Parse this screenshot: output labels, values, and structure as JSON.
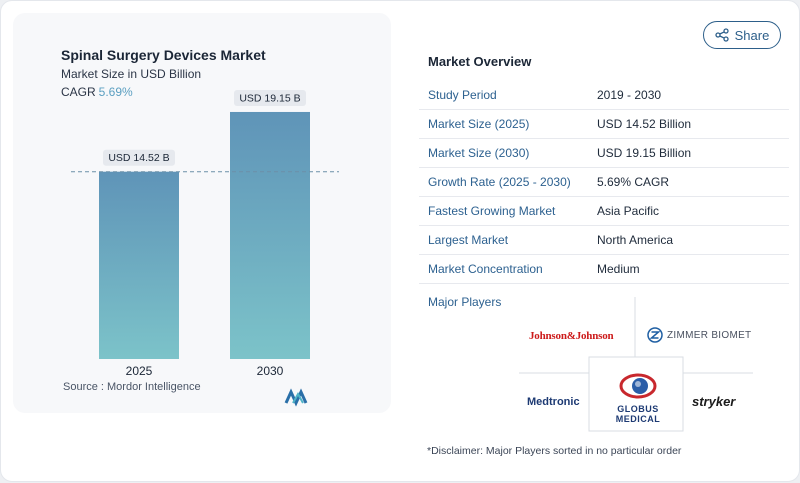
{
  "chart": {
    "title": "Spinal Surgery Devices Market",
    "subtitle": "Market Size in USD Billion",
    "cagr_label": "CAGR",
    "cagr_value": "5.69%",
    "source": "Source :  Mordor Intelligence"
  },
  "chart_data": {
    "type": "bar",
    "categories": [
      "2025",
      "2030"
    ],
    "values": [
      14.52,
      19.15
    ],
    "data_labels": [
      "USD 14.52 B",
      "USD 19.15 B"
    ],
    "title": "Spinal Surgery Devices Market",
    "subtitle": "Market Size in USD Billion",
    "ylim": [
      0,
      20
    ],
    "reference_line": 14.52,
    "colors": [
      "#5f94b8",
      "#7cc3c9"
    ]
  },
  "share": {
    "label": "Share",
    "icon": "share-icon"
  },
  "overview": {
    "title": "Market Overview",
    "rows": [
      {
        "key": "Study Period",
        "value": "2019 - 2030"
      },
      {
        "key": "Market Size (2025)",
        "value": "USD 14.52 Billion"
      },
      {
        "key": "Market Size (2030)",
        "value": "USD 19.15 Billion"
      },
      {
        "key": "Growth Rate (2025 - 2030)",
        "value": "5.69% CAGR"
      },
      {
        "key": "Fastest Growing Market",
        "value": "Asia Pacific"
      },
      {
        "key": "Largest Market",
        "value": "North America"
      },
      {
        "key": "Market Concentration",
        "value": "Medium"
      }
    ],
    "players_label": "Major Players",
    "players": {
      "jnj": "Johnson&Johnson",
      "zimmer": "ZIMMER BIOMET",
      "medtronic": "Medtronic",
      "globus": "GLOBUS",
      "globus_sub": "MEDICAL",
      "stryker": "stryker"
    },
    "disclaimer": "*Disclaimer: Major Players sorted in no particular order"
  },
  "colors": {
    "accent": "#2d6190",
    "cagr": "#5b9fc1",
    "bar_top": "#5f94b8",
    "bar_bottom": "#7cc3c9"
  }
}
